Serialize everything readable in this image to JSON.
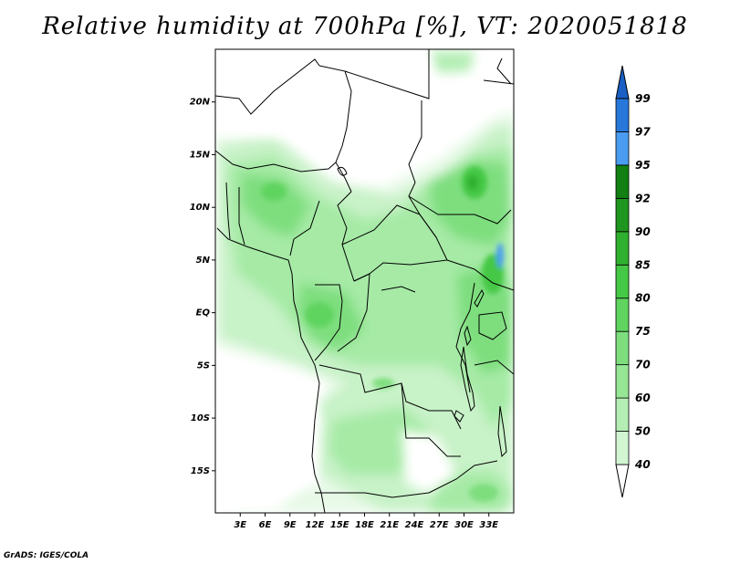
{
  "title": "Relative humidity at 700hPa [%], VT: 2020051818",
  "credit": "GrADS: IGES/COLA",
  "map": {
    "lat_range": [
      -19,
      25
    ],
    "lon_range": [
      0,
      36
    ],
    "lat_ticks": [
      "20N",
      "15N",
      "10N",
      "5N",
      "EQ",
      "5S",
      "10S",
      "15S"
    ],
    "lat_tick_values": [
      20,
      15,
      10,
      5,
      0,
      -5,
      -10,
      -15
    ],
    "lon_ticks": [
      "3E",
      "6E",
      "9E",
      "12E",
      "15E",
      "18E",
      "21E",
      "24E",
      "27E",
      "30E",
      "33E"
    ],
    "lon_tick_values": [
      3,
      6,
      9,
      12,
      15,
      18,
      21,
      24,
      27,
      30,
      33
    ]
  },
  "colorbar": {
    "labels": [
      "40",
      "50",
      "60",
      "70",
      "75",
      "80",
      "85",
      "90",
      "92",
      "95",
      "97",
      "99"
    ],
    "colors": [
      "#f0fbf0",
      "#d2f5d2",
      "#b4eeb4",
      "#96e696",
      "#7ede7e",
      "#5fd45f",
      "#45c845",
      "#2fb02f",
      "#1f961f",
      "#128012",
      "#4a9cf0",
      "#2878dc",
      "#1a5fc4"
    ]
  }
}
